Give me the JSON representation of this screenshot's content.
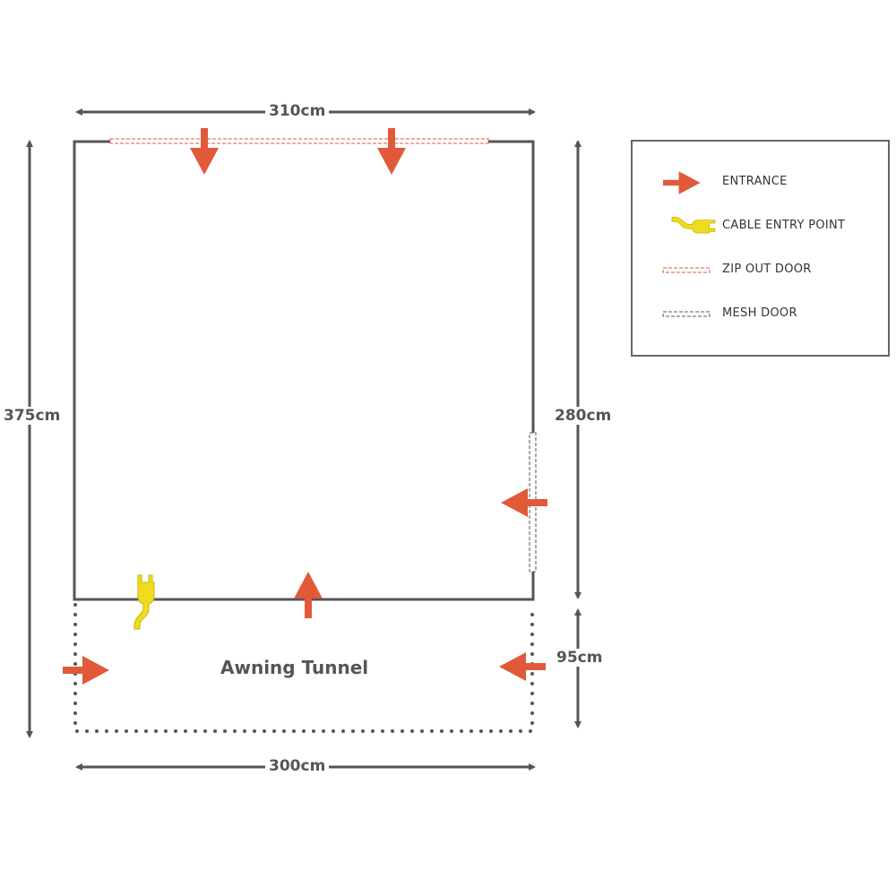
{
  "colors": {
    "outline": "#555555",
    "entrance": "#e05a3a",
    "cable": "#f0dc1e",
    "zip_door": "#e05a3a",
    "mesh_door": "#555555"
  },
  "dimensions": {
    "top_width": "310cm",
    "bottom_width": "300cm",
    "total_depth": "375cm",
    "awning_depth": "280cm",
    "tunnel_depth": "95cm"
  },
  "tunnel_label": "Awning Tunnel",
  "legend": {
    "items": [
      {
        "icon": "entrance-arrow-icon",
        "label": "ENTRANCE"
      },
      {
        "icon": "cable-plug-icon",
        "label": "CABLE ENTRY POINT"
      },
      {
        "icon": "zip-door-dashed-icon",
        "label": "ZIP OUT DOOR"
      },
      {
        "icon": "mesh-door-dashed-icon",
        "label": "MESH DOOR"
      }
    ]
  }
}
